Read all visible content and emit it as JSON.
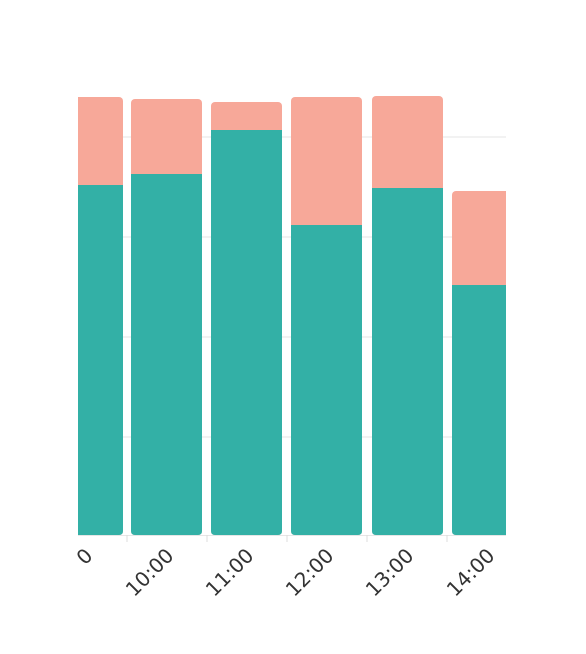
{
  "chart_data": {
    "type": "bar",
    "stacked": true,
    "categories": [
      "",
      "10:00",
      "11:00",
      "12:00",
      "13:00",
      "14:00"
    ],
    "tick_labels_visible": [
      "0",
      "10:00",
      "11:00",
      "12:00",
      "13:00",
      "14:00"
    ],
    "series": [
      {
        "values": [
          3.5,
          3.61,
          4.05,
          3.1,
          3.47,
          2.5
        ],
        "color": "#33b0a6"
      },
      {
        "values": [
          0.88,
          0.75,
          0.28,
          1.28,
          0.92,
          0.94
        ],
        "color": "#f7a899"
      }
    ],
    "ylim": [
      0,
      4.4
    ],
    "grid": true,
    "legend": "none",
    "title": "",
    "xlabel": "",
    "ylabel": ""
  }
}
